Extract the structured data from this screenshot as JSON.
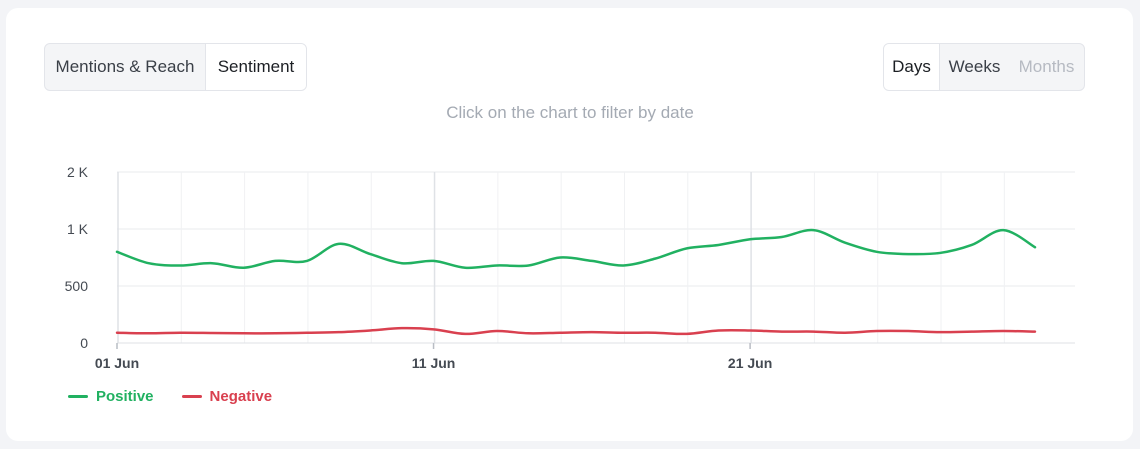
{
  "tabs": {
    "metric": [
      {
        "label": "Mentions & Reach",
        "active": false
      },
      {
        "label": "Sentiment",
        "active": true
      }
    ],
    "period": [
      {
        "label": "Days",
        "active": true,
        "disabled": false
      },
      {
        "label": "Weeks",
        "active": false,
        "disabled": false
      },
      {
        "label": "Months",
        "active": false,
        "disabled": true
      }
    ]
  },
  "hint": "Click on the chart to filter by date",
  "colors": {
    "positive": "#21b161",
    "negative": "#d9404f",
    "grid": "#e9ebee",
    "axis_text": "#444a52"
  },
  "chart_data": {
    "type": "line",
    "x": [
      "01 Jun",
      "02 Jun",
      "03 Jun",
      "04 Jun",
      "05 Jun",
      "06 Jun",
      "07 Jun",
      "08 Jun",
      "09 Jun",
      "10 Jun",
      "11 Jun",
      "12 Jun",
      "13 Jun",
      "14 Jun",
      "15 Jun",
      "16 Jun",
      "17 Jun",
      "18 Jun",
      "19 Jun",
      "20 Jun",
      "21 Jun",
      "22 Jun",
      "23 Jun",
      "24 Jun",
      "25 Jun",
      "26 Jun",
      "27 Jun",
      "28 Jun",
      "29 Jun",
      "30 Jun"
    ],
    "x_tick_labels": [
      {
        "index": 0,
        "label": "01 Jun"
      },
      {
        "index": 10,
        "label": "11 Jun"
      },
      {
        "index": 20,
        "label": "21 Jun"
      }
    ],
    "y_ticks": [
      {
        "value": 0,
        "label": "0"
      },
      {
        "value": 500,
        "label": "500"
      },
      {
        "value": 1000,
        "label": "1 K"
      },
      {
        "value": 2000,
        "label": "2 K"
      }
    ],
    "ylim": [
      0,
      2000
    ],
    "series": [
      {
        "name": "Positive",
        "values": [
          800,
          700,
          680,
          700,
          660,
          720,
          720,
          870,
          780,
          700,
          720,
          660,
          680,
          680,
          750,
          720,
          680,
          740,
          830,
          860,
          910,
          930,
          990,
          880,
          800,
          780,
          790,
          860,
          990,
          840
        ]
      },
      {
        "name": "Negative",
        "values": [
          90,
          85,
          90,
          88,
          85,
          85,
          90,
          95,
          110,
          130,
          120,
          80,
          105,
          85,
          90,
          95,
          90,
          90,
          80,
          110,
          110,
          100,
          100,
          90,
          105,
          105,
          95,
          100,
          105,
          100
        ]
      }
    ],
    "legend_position": "bottom-left",
    "grid": true
  }
}
